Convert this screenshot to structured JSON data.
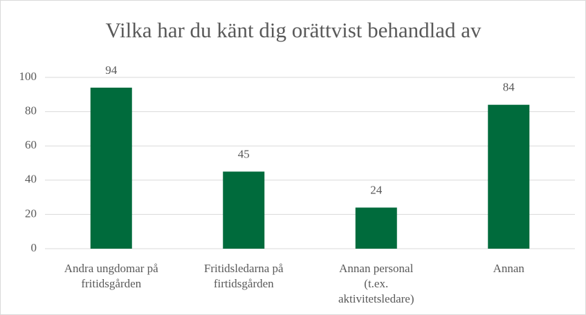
{
  "chart_data": {
    "type": "bar",
    "title": "Vilka har du känt dig orättvist behandlad av",
    "categories": [
      "Andra ungdomar på\nfritidsgården",
      "Fritidsledarna på\nfirtidsgården",
      "Annan personal\n(t.ex.\naktivitetsledare)",
      "Annan"
    ],
    "values": [
      94,
      45,
      24,
      84
    ],
    "color": "#006b3c",
    "ylim": [
      0,
      100
    ],
    "yticks": [
      0,
      20,
      40,
      60,
      80,
      100
    ],
    "grid": true
  }
}
